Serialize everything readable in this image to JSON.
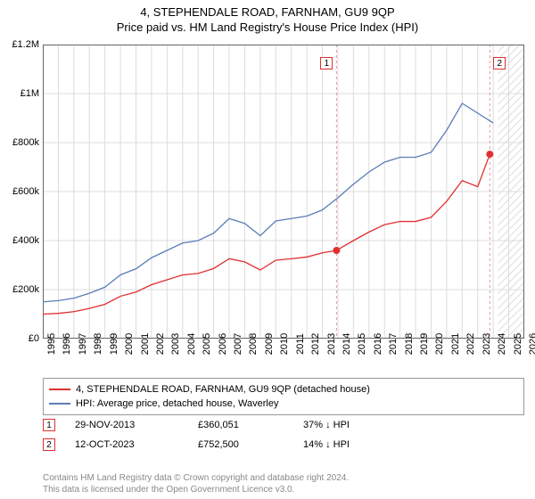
{
  "title": "4, STEPHENDALE ROAD, FARNHAM, GU9 9QP",
  "subtitle": "Price paid vs. HM Land Registry's House Price Index (HPI)",
  "chart": {
    "type": "line",
    "background_color": "#ffffff",
    "grid_color": "#dcdcdc",
    "border_color": "#666666",
    "xlim": [
      1995,
      2026
    ],
    "ylim": [
      0,
      1200000
    ],
    "yticks": [
      0,
      200000,
      400000,
      600000,
      800000,
      1000000,
      1200000
    ],
    "ytick_labels": [
      "£0",
      "£200k",
      "£400k",
      "£600k",
      "£800k",
      "£1M",
      "£1.2M"
    ],
    "xticks": [
      1995,
      1996,
      1997,
      1998,
      1999,
      2000,
      2001,
      2002,
      2003,
      2004,
      2005,
      2006,
      2007,
      2008,
      2009,
      2010,
      2011,
      2012,
      2013,
      2014,
      2015,
      2016,
      2017,
      2018,
      2019,
      2020,
      2021,
      2022,
      2023,
      2024,
      2025,
      2026
    ],
    "label_fontsize": 11,
    "title_fontsize": 13,
    "hpi_series": {
      "label": "HPI: Average price, detached house, Waverley",
      "color": "#5a7db8",
      "line_width": 1.3,
      "data": [
        [
          1995,
          150000
        ],
        [
          1996,
          155000
        ],
        [
          1997,
          165000
        ],
        [
          1998,
          185000
        ],
        [
          1999,
          210000
        ],
        [
          2000,
          260000
        ],
        [
          2001,
          285000
        ],
        [
          2002,
          330000
        ],
        [
          2003,
          360000
        ],
        [
          2004,
          390000
        ],
        [
          2005,
          400000
        ],
        [
          2006,
          430000
        ],
        [
          2007,
          490000
        ],
        [
          2008,
          470000
        ],
        [
          2009,
          420000
        ],
        [
          2010,
          480000
        ],
        [
          2011,
          490000
        ],
        [
          2012,
          500000
        ],
        [
          2013,
          525000
        ],
        [
          2014,
          575000
        ],
        [
          2015,
          630000
        ],
        [
          2016,
          680000
        ],
        [
          2017,
          720000
        ],
        [
          2018,
          740000
        ],
        [
          2019,
          740000
        ],
        [
          2020,
          760000
        ],
        [
          2021,
          850000
        ],
        [
          2022,
          960000
        ],
        [
          2023,
          920000
        ],
        [
          2024,
          880000
        ]
      ]
    },
    "price_series": {
      "label": "4, STEPHENDALE ROAD, FARNHAM, GU9 9QP (detached house)",
      "color": "#e03030",
      "line_width": 1.3,
      "data": [
        [
          1995,
          100000
        ],
        [
          1996,
          103000
        ],
        [
          1997,
          110000
        ],
        [
          1998,
          123000
        ],
        [
          1999,
          140000
        ],
        [
          2000,
          173000
        ],
        [
          2001,
          190000
        ],
        [
          2002,
          220000
        ],
        [
          2003,
          240000
        ],
        [
          2004,
          260000
        ],
        [
          2005,
          266000
        ],
        [
          2006,
          286000
        ],
        [
          2007,
          326000
        ],
        [
          2008,
          313000
        ],
        [
          2009,
          280000
        ],
        [
          2010,
          320000
        ],
        [
          2011,
          326000
        ],
        [
          2012,
          333000
        ],
        [
          2013,
          350000
        ],
        [
          2013.91,
          360051
        ],
        [
          2015,
          400000
        ],
        [
          2016,
          435000
        ],
        [
          2017,
          465000
        ],
        [
          2018,
          478000
        ],
        [
          2019,
          478000
        ],
        [
          2020,
          495000
        ],
        [
          2021,
          560000
        ],
        [
          2022,
          645000
        ],
        [
          2023,
          620000
        ],
        [
          2023.78,
          752500
        ]
      ]
    },
    "sale_markers": [
      {
        "n": "1",
        "x": 2013.91,
        "y": 360051,
        "color": "#e03030"
      },
      {
        "n": "2",
        "x": 2023.78,
        "y": 752500,
        "color": "#e03030"
      }
    ],
    "hatched_region": {
      "from": 2024.3,
      "to": 2026,
      "stroke": "#bbbbbb"
    },
    "marker_lines_color": "#e69999"
  },
  "legend": {
    "items": [
      {
        "color": "#e03030",
        "label": "4, STEPHENDALE ROAD, FARNHAM, GU9 9QP (detached house)"
      },
      {
        "color": "#5a7db8",
        "label": "HPI: Average price, detached house, Waverley"
      }
    ]
  },
  "sales": [
    {
      "n": "1",
      "date": "29-NOV-2013",
      "price": "£360,051",
      "hpi": "37% ↓ HPI",
      "color": "#e03030"
    },
    {
      "n": "2",
      "date": "12-OCT-2023",
      "price": "£752,500",
      "hpi": "14% ↓ HPI",
      "color": "#e03030"
    }
  ],
  "footer": {
    "line1": "Contains HM Land Registry data © Crown copyright and database right 2024.",
    "line2": "This data is licensed under the Open Government Licence v3.0."
  }
}
